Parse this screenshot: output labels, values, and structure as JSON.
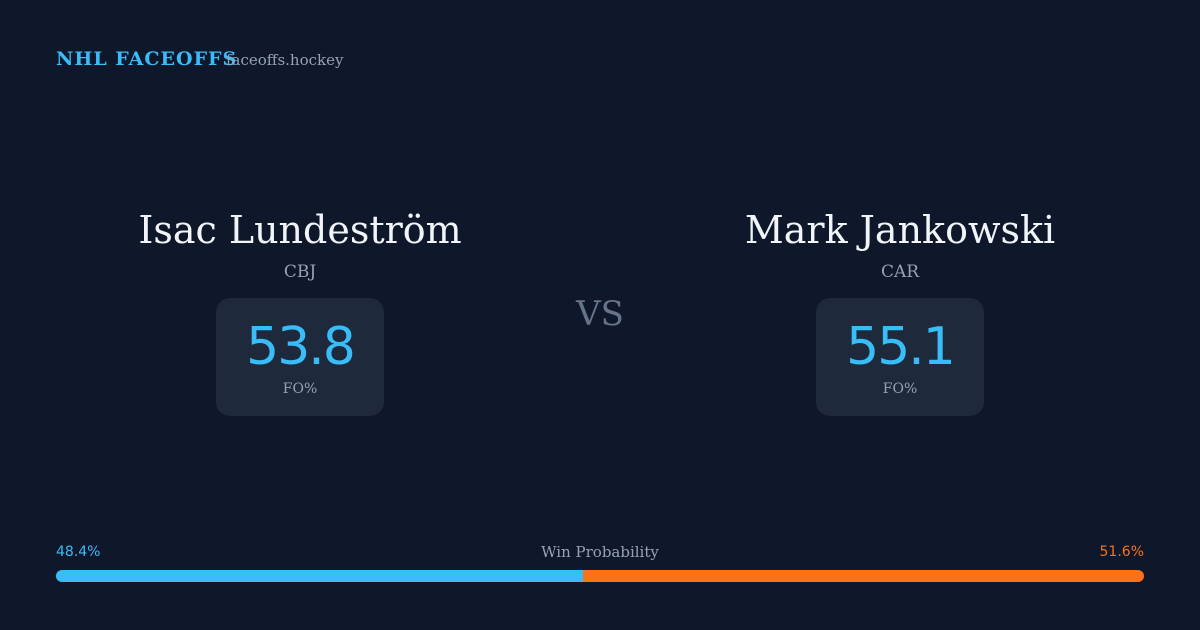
{
  "header": {
    "brand": "NHL FACEOFFS",
    "site": "faceoffs.hockey"
  },
  "players": [
    {
      "name": "Isac Lundeström",
      "team": "CBJ",
      "fo": 53.8,
      "fo_label": "FO%"
    },
    {
      "name": "Mark Jankowski",
      "team": "CAR",
      "fo": 55.1,
      "fo_label": "FO%"
    }
  ],
  "vs": "VS",
  "win_probability": {
    "title": "Win Probability",
    "left": {
      "value": 48.4,
      "label": "48.4%",
      "color": "#38bdf8"
    },
    "right": {
      "value": 51.6,
      "label": "51.6%",
      "color": "#f97316"
    }
  }
}
